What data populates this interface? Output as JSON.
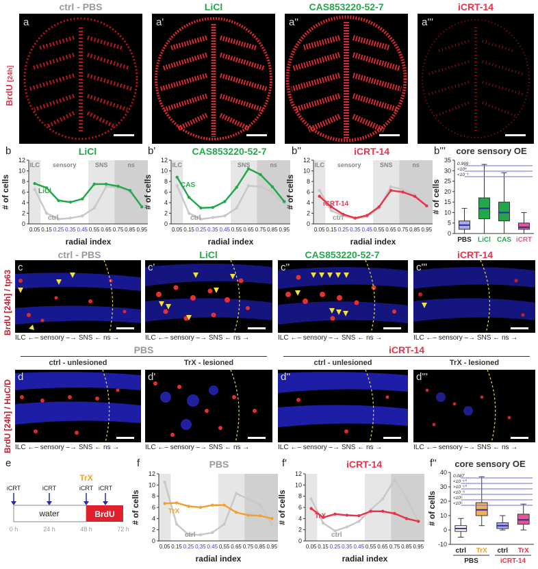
{
  "colors": {
    "gray": "#999999",
    "green": "#22a84a",
    "red": "#e8334a",
    "orange": "#f0a030",
    "blue": "#3a3ac8",
    "pink": "#e05a90"
  },
  "row_a": {
    "ylabel": "BrdU",
    "ylabel_sub": "[24h]",
    "panels": [
      {
        "letter": "a",
        "title": "ctrl - PBS",
        "color": "gray"
      },
      {
        "letter": "a'",
        "title": "LiCl",
        "color": "green"
      },
      {
        "letter": "a''",
        "title": "CAS853220-52-7",
        "color": "green"
      },
      {
        "letter": "a'''",
        "title": "iCRT-14",
        "color": "red"
      }
    ]
  },
  "row_b": {
    "panels": [
      {
        "letter": "b",
        "title": "LiCl",
        "color": "green",
        "series_label": "LiCl"
      },
      {
        "letter": "b'",
        "title": "CAS853220-52-7",
        "color": "green",
        "series_label": "CAS"
      },
      {
        "letter": "b''",
        "title": "iCRT-14",
        "color": "red",
        "series_label": "iCRT-14"
      }
    ],
    "box": {
      "letter": "b'''",
      "title": "core sensory OE"
    }
  },
  "row_c": {
    "ylabel": "BrdU [24h] / tp63",
    "panels": [
      {
        "letter": "c",
        "title": "ctrl - PBS",
        "color": "gray"
      },
      {
        "letter": "c'",
        "title": "LiCl",
        "color": "green"
      },
      {
        "letter": "c''",
        "title": "CAS853220-52-7",
        "color": "green"
      },
      {
        "letter": "c'''",
        "title": "iCRT-14",
        "color": "red"
      }
    ]
  },
  "row_d": {
    "ylabel": "BrdU [24h] / HuC/D",
    "groups": [
      {
        "title": "PBS",
        "color": "gray"
      },
      {
        "title": "iCRT-14",
        "color": "red"
      }
    ],
    "panels": [
      {
        "letter": "d",
        "title": "ctrl - unlesioned"
      },
      {
        "letter": "d'",
        "title": "TrX - lesioned"
      },
      {
        "letter": "d''",
        "title": "ctrl - unlesioned"
      },
      {
        "letter": "d'''",
        "title": "TrX - lesioned"
      }
    ]
  },
  "bottom_labels": {
    "ilc": "ILC",
    "sensory": "sensory",
    "sns": "SNS",
    "ns": "ns"
  },
  "row_e": {
    "letter": "e",
    "icrt": "iCRT",
    "trx": "TrX",
    "water": "water",
    "brdu": "BrdU",
    "times": [
      "0 h",
      "24 h",
      "48 h",
      "72 h"
    ]
  },
  "row_f": {
    "panels": [
      {
        "letter": "f",
        "title": "PBS",
        "color": "gray",
        "series_label": "TrX"
      },
      {
        "letter": "f'",
        "title": "iCRT-14",
        "color": "red",
        "series_label": "TrX"
      }
    ],
    "box": {
      "letter": "f''",
      "title": "core sensory OE"
    }
  },
  "chart_data": [
    {
      "id": "b",
      "type": "line",
      "xlabel": "radial index",
      "ylabel": "# of cells",
      "ylim": [
        0,
        12
      ],
      "x": [
        0.05,
        0.15,
        0.25,
        0.35,
        0.45,
        0.55,
        0.65,
        0.75,
        0.85,
        0.95
      ],
      "regions": [
        "ILC",
        "sensory",
        "SNS",
        "ns"
      ],
      "series": [
        {
          "name": "ctrl",
          "values": [
            6.5,
            2.0,
            0.9,
            1.1,
            1.5,
            3.0,
            7.0,
            6.9,
            5.8,
            3.5
          ]
        },
        {
          "name": "LiCl",
          "values": [
            7.6,
            6.8,
            4.4,
            4.1,
            4.7,
            7.5,
            7.5,
            7.1,
            6.3,
            3.2
          ]
        }
      ]
    },
    {
      "id": "b'",
      "type": "line",
      "xlabel": "radial index",
      "ylabel": "# of cells",
      "ylim": [
        0,
        12
      ],
      "x": [
        0.05,
        0.15,
        0.25,
        0.35,
        0.45,
        0.55,
        0.65,
        0.75,
        0.85,
        0.95
      ],
      "regions": [
        "ILC",
        "SNS",
        "ns"
      ],
      "series": [
        {
          "name": "ctrl",
          "values": [
            7.2,
            2.0,
            0.9,
            1.2,
            1.5,
            3.0,
            7.2,
            7.0,
            6.0,
            3.8
          ]
        },
        {
          "name": "CAS",
          "values": [
            8.8,
            5.0,
            3.0,
            3.1,
            4.2,
            6.9,
            10.4,
            9.3,
            7.0,
            4.2
          ]
        }
      ]
    },
    {
      "id": "b''",
      "type": "line",
      "xlabel": "radial index",
      "ylabel": "# of cells",
      "ylim": [
        0,
        12
      ],
      "x": [
        0.05,
        0.15,
        0.25,
        0.35,
        0.45,
        0.55,
        0.65,
        0.75,
        0.85,
        0.95
      ],
      "regions": [
        "ILC",
        "sensory",
        "SNS",
        "ns"
      ],
      "series": [
        {
          "name": "ctrl",
          "values": [
            6.3,
            2.5,
            1.5,
            1.0,
            1.4,
            3.0,
            7.0,
            6.5,
            5.5,
            3.5
          ]
        },
        {
          "name": "iCRT-14",
          "values": [
            5.2,
            3.2,
            1.8,
            1.1,
            1.6,
            3.2,
            6.3,
            6.0,
            5.2,
            3.4
          ]
        }
      ]
    },
    {
      "id": "b'''",
      "type": "box",
      "ylabel": "# of cells",
      "ylim": [
        0,
        35
      ],
      "categories": [
        "PBS",
        "LiCl",
        "CAS",
        "iCRT"
      ],
      "boxes": [
        [
          0,
          2,
          4,
          6,
          12
        ],
        [
          0,
          7,
          12,
          17,
          33
        ],
        [
          0,
          6,
          10,
          15,
          29
        ],
        [
          0,
          2,
          3,
          5,
          10
        ]
      ],
      "pvalues": [
        "0.999",
        "<10⁴",
        "<10⁻¹"
      ]
    },
    {
      "id": "f",
      "type": "line",
      "xlabel": "radial index",
      "ylabel": "# of cells",
      "ylim": [
        0,
        12
      ],
      "x": [
        0.05,
        0.15,
        0.25,
        0.35,
        0.45,
        0.55,
        0.65,
        0.75,
        0.85,
        0.95
      ],
      "series": [
        {
          "name": "ctrl",
          "values": [
            10.5,
            3.0,
            1.1,
            1.1,
            1.5,
            3.0,
            8.5,
            7.5,
            6.5,
            3.0
          ]
        },
        {
          "name": "TrX",
          "values": [
            6.7,
            6.8,
            6.2,
            6.0,
            6.4,
            6.4,
            5.1,
            4.6,
            4.5,
            4.0
          ]
        }
      ]
    },
    {
      "id": "f'",
      "type": "line",
      "xlabel": "radial index",
      "ylabel": "# of cells",
      "ylim": [
        0,
        12
      ],
      "x": [
        0.05,
        0.15,
        0.25,
        0.35,
        0.45,
        0.55,
        0.65,
        0.75,
        0.85,
        0.95
      ],
      "series": [
        {
          "name": "ctrl",
          "values": [
            7.5,
            3.2,
            1.8,
            2.5,
            3.5,
            5.6,
            7.5,
            11.0,
            7.6,
            3.5
          ]
        },
        {
          "name": "TrX",
          "values": [
            5.8,
            4.2,
            4.8,
            4.6,
            4.5,
            5.3,
            5.3,
            4.9,
            4.0,
            3.5
          ]
        }
      ]
    },
    {
      "id": "f''",
      "type": "box",
      "ylabel": "# of cells",
      "ylim": [
        -10,
        40
      ],
      "categories": [
        "ctrl",
        "TrX",
        "ctrl",
        "TrX"
      ],
      "groups": [
        "PBS",
        "iCRT-14"
      ],
      "boxes": [
        [
          -5,
          -1,
          1,
          3,
          8
        ],
        [
          3,
          10,
          14,
          19,
          37
        ],
        [
          0,
          1,
          3,
          5,
          10
        ],
        [
          0,
          4,
          7,
          11,
          18
        ]
      ],
      "pvalues": [
        "0.087",
        "<10⁻¹⁰",
        ">10⁻¹⁰",
        "<10⁻⁵",
        "<10⁵",
        "<10⁵"
      ]
    }
  ]
}
